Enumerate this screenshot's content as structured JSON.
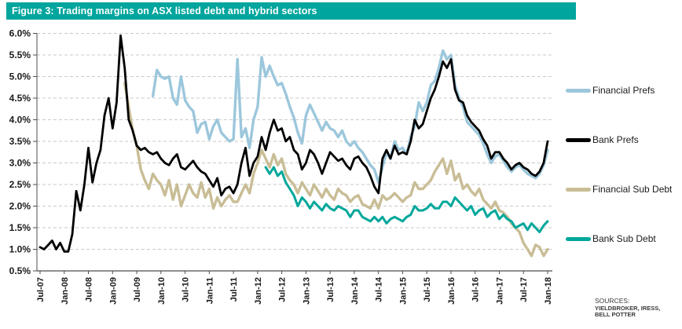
{
  "figure": {
    "title": "Figure 3: Trading margins on ASX listed debt and hybrid sectors",
    "title_bar_color": "#00A59D"
  },
  "legend": [
    {
      "label": "Financial Prefs",
      "color": "#9CC7DC"
    },
    {
      "label": "Bank Prefs",
      "color": "#000000"
    },
    {
      "label": "Financial Sub Debt",
      "color": "#C9BD96"
    },
    {
      "label": "Bank Sub Debt",
      "color": "#00A79B"
    }
  ],
  "sources": {
    "heading": "SOURCES:",
    "lines": [
      "YIELDBROKER, IRESS,",
      "BELL POTTER"
    ]
  },
  "chart_data": {
    "type": "line",
    "title": "Trading margins on ASX listed debt and hybrid sectors",
    "x_unit": "months, monthly estimates from Jul-2007 (index 0) to Jan-2018 (index 126)",
    "y_unit": "trading margin %",
    "ylim": [
      0.5,
      6.0
    ],
    "y_tick_labels": [
      "6.0%",
      "5.5%",
      "5.0%",
      "4.5%",
      "4.0%",
      "3.5%",
      "3.0%",
      "2.5%",
      "2.0%",
      "1.5%",
      "1.0%",
      "0.5%"
    ],
    "x_tick_labels": [
      "Jul-07",
      "Jan-08",
      "Jul-08",
      "Jan-09",
      "Jul-09",
      "Jan-10",
      "Jul-10",
      "Jan-11",
      "Jul-11",
      "Jan-12",
      "Jul-12",
      "Jan-13",
      "Jul-13",
      "Jan-14",
      "Jul-14",
      "Jan-15",
      "Jul-15",
      "Jan-16",
      "Jul-16",
      "Jan-17",
      "Jul-17",
      "Jan-18"
    ],
    "grid": "horizontal dashed",
    "legend_position": "right",
    "series": [
      {
        "name": "Financial Prefs",
        "color": "#9CC7DC",
        "start_month_index": 28,
        "values": [
          4.55,
          5.15,
          5.0,
          4.95,
          5.0,
          4.5,
          4.35,
          5.0,
          4.45,
          4.3,
          4.2,
          3.7,
          3.9,
          3.95,
          3.55,
          3.85,
          4.0,
          3.7,
          3.6,
          3.5,
          3.55,
          5.4,
          3.6,
          3.8,
          3.35,
          4.0,
          4.3,
          5.45,
          5.0,
          5.25,
          5.0,
          4.8,
          4.85,
          4.6,
          4.3,
          4.05,
          3.7,
          3.45,
          4.1,
          4.35,
          4.15,
          3.95,
          3.75,
          3.95,
          3.8,
          3.75,
          3.6,
          3.75,
          3.5,
          3.4,
          3.5,
          3.35,
          3.25,
          3.1,
          2.95,
          2.85,
          2.55,
          2.9,
          3.25,
          3.1,
          3.5,
          3.3,
          3.35,
          3.2,
          3.6,
          3.85,
          4.4,
          4.2,
          4.4,
          4.8,
          4.9,
          5.2,
          5.6,
          5.4,
          5.5,
          4.8,
          4.5,
          4.3,
          3.95,
          3.85,
          3.75,
          3.65,
          3.45,
          3.2,
          3.0,
          3.15,
          3.2,
          3.05,
          2.9,
          2.8,
          2.9,
          2.95,
          2.85,
          2.75,
          2.7,
          2.65,
          2.75,
          2.95,
          3.3
        ]
      },
      {
        "name": "Bank Prefs",
        "color": "#000000",
        "start_month_index": 0,
        "values": [
          1.05,
          1.0,
          1.1,
          1.2,
          1.0,
          1.15,
          0.95,
          0.95,
          1.35,
          2.35,
          1.9,
          2.5,
          3.35,
          2.55,
          3.0,
          3.3,
          4.1,
          4.5,
          3.8,
          4.4,
          5.95,
          5.2,
          4.0,
          3.75,
          3.4,
          3.3,
          3.35,
          3.25,
          3.2,
          3.25,
          3.1,
          3.0,
          2.95,
          3.1,
          3.2,
          2.9,
          2.85,
          2.95,
          3.05,
          2.9,
          2.8,
          2.75,
          2.6,
          2.45,
          2.65,
          2.25,
          2.4,
          2.45,
          2.3,
          2.5,
          3.0,
          3.35,
          2.7,
          3.0,
          3.15,
          3.6,
          3.3,
          3.7,
          4.0,
          3.75,
          3.8,
          3.5,
          3.6,
          3.3,
          3.2,
          2.85,
          3.0,
          3.3,
          3.2,
          3.0,
          2.75,
          3.0,
          3.25,
          3.15,
          3.05,
          3.1,
          2.95,
          2.85,
          3.1,
          3.15,
          3.0,
          2.9,
          2.7,
          2.45,
          2.3,
          3.1,
          3.3,
          3.1,
          3.4,
          3.2,
          3.25,
          3.2,
          3.5,
          4.0,
          3.8,
          3.9,
          4.2,
          4.5,
          4.7,
          5.0,
          5.35,
          5.2,
          5.4,
          4.7,
          4.45,
          4.4,
          4.1,
          3.95,
          3.85,
          3.75,
          3.55,
          3.4,
          3.1,
          3.25,
          3.25,
          3.1,
          3.0,
          2.85,
          2.95,
          3.0,
          2.9,
          2.85,
          2.75,
          2.7,
          2.8,
          3.0,
          3.5
        ]
      },
      {
        "name": "Financial Sub Debt",
        "color": "#C9BD96",
        "start_month_index": 21,
        "values": [
          4.85,
          4.3,
          3.75,
          3.4,
          2.85,
          2.6,
          2.4,
          2.75,
          2.6,
          2.5,
          2.25,
          2.6,
          2.15,
          2.5,
          2.0,
          2.25,
          2.5,
          2.3,
          2.2,
          2.55,
          2.2,
          2.4,
          1.95,
          2.2,
          2.0,
          2.15,
          2.25,
          2.1,
          2.1,
          2.3,
          2.5,
          2.3,
          2.75,
          3.0,
          3.3,
          3.1,
          2.9,
          3.2,
          2.95,
          3.1,
          2.75,
          2.6,
          2.5,
          2.3,
          2.55,
          2.4,
          2.25,
          2.5,
          2.35,
          2.2,
          2.4,
          2.25,
          2.15,
          2.4,
          2.3,
          2.25,
          2.1,
          2.2,
          2.25,
          2.05,
          2.0,
          1.95,
          2.15,
          1.95,
          2.25,
          2.15,
          2.2,
          2.3,
          2.2,
          2.1,
          2.2,
          2.25,
          2.55,
          2.4,
          2.4,
          2.5,
          2.6,
          2.8,
          2.95,
          3.1,
          2.75,
          3.05,
          2.6,
          2.75,
          2.4,
          2.5,
          2.35,
          2.25,
          2.4,
          2.15,
          2.05,
          1.95,
          2.1,
          1.9,
          1.85,
          1.75,
          1.6,
          1.5,
          1.4,
          1.15,
          1.0,
          0.85,
          1.1,
          1.05,
          0.85,
          1.0
        ]
      },
      {
        "name": "Bank Sub Debt",
        "color": "#00A79B",
        "start_month_index": 56,
        "values": [
          2.9,
          2.75,
          2.9,
          2.7,
          2.8,
          2.55,
          2.4,
          2.25,
          2.0,
          2.2,
          2.1,
          1.95,
          2.1,
          2.0,
          1.9,
          2.05,
          1.95,
          1.9,
          2.0,
          1.95,
          1.9,
          1.75,
          1.9,
          1.9,
          1.75,
          1.7,
          1.65,
          1.75,
          1.65,
          1.75,
          1.6,
          1.7,
          1.75,
          1.7,
          1.65,
          1.75,
          1.8,
          2.0,
          1.9,
          1.9,
          1.95,
          2.05,
          1.95,
          1.95,
          2.1,
          2.1,
          2.0,
          2.2,
          2.1,
          2.0,
          1.9,
          2.0,
          1.8,
          1.9,
          1.95,
          1.75,
          1.85,
          1.9,
          1.7,
          1.8,
          1.7,
          1.65,
          1.5,
          1.55,
          1.6,
          1.45,
          1.6,
          1.5,
          1.4,
          1.55,
          1.65
        ]
      }
    ]
  }
}
